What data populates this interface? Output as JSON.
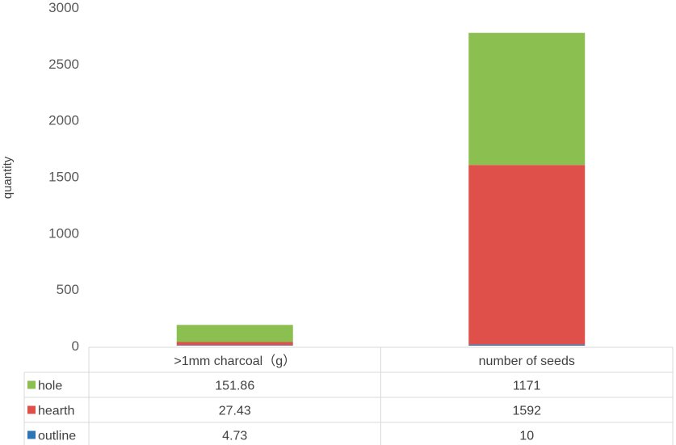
{
  "chart_data": {
    "type": "bar",
    "stacked": true,
    "ylabel": "quantity",
    "ylim": [
      0,
      3000
    ],
    "yticks": [
      0,
      500,
      1000,
      1500,
      2000,
      2500,
      3000
    ],
    "categories": [
      ">1mm charcoal（g）",
      "number of seeds"
    ],
    "series": [
      {
        "name": "outline",
        "values": [
          4.73,
          10
        ],
        "color": "#2e75b6"
      },
      {
        "name": "hearth",
        "values": [
          27.43,
          1592
        ],
        "color": "#e0504a"
      },
      {
        "name": "hole",
        "values": [
          151.86,
          1171
        ],
        "color": "#8bbf4f"
      }
    ],
    "table": {
      "rows": [
        {
          "name": "hole",
          "values": [
            "151.86",
            "1171"
          ]
        },
        {
          "name": "hearth",
          "values": [
            "27.43",
            "1592"
          ]
        },
        {
          "name": "outline",
          "values": [
            "4.73",
            "10"
          ]
        }
      ]
    },
    "grid": false,
    "legend": "data-table"
  }
}
